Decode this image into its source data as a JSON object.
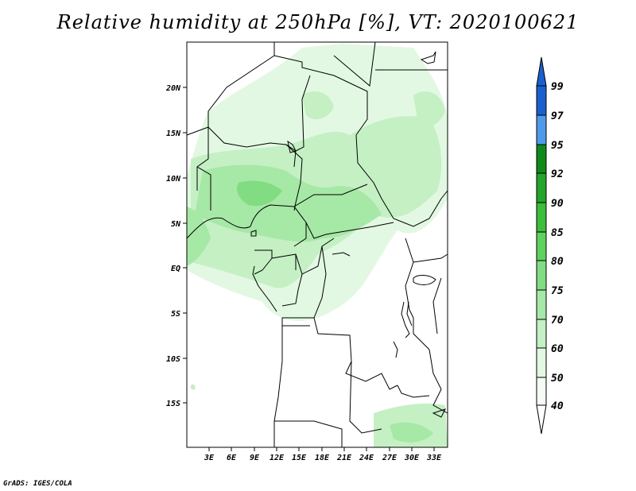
{
  "title": "Relative humidity at 250hPa [%], VT: 2020100621",
  "credit": "GrADS: IGES/COLA",
  "axes": {
    "lat_labels": [
      "20N",
      "15N",
      "10N",
      "5N",
      "EQ",
      "5S",
      "10S",
      "15S"
    ],
    "lon_labels": [
      "3E",
      "6E",
      "9E",
      "12E",
      "15E",
      "18E",
      "21E",
      "24E",
      "27E",
      "30E",
      "33E"
    ]
  },
  "colorbar": {
    "levels": [
      "99",
      "97",
      "95",
      "92",
      "90",
      "85",
      "80",
      "75",
      "70",
      "60",
      "50",
      "40"
    ],
    "colors": [
      "#1b5fcf",
      "#2a7ae0",
      "#4f9bea",
      "#0f8a18",
      "#22a52a",
      "#3cbd3c",
      "#5fd15f",
      "#82dc82",
      "#a6e8a6",
      "#c4f0c4",
      "#e2f8e2",
      "#ffffff"
    ]
  }
}
